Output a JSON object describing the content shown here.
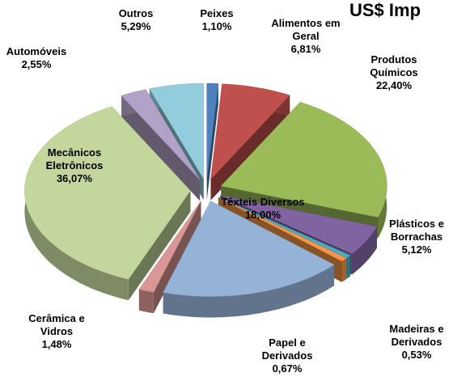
{
  "chart_data": {
    "type": "pie3d",
    "title": "US$ Imp",
    "categories": [
      "Peixes",
      "Alimentos em Geral",
      "Produtos Químicos",
      "Plásticos e Borrachas",
      "Madeiras e Derivados",
      "Papel e Derivados",
      "Têxteis Diversos",
      "Cerâmica e Vidros",
      "Mecânicos Eletrônicos",
      "Automóveis",
      "Outros"
    ],
    "values": [
      1.1,
      6.81,
      22.4,
      5.12,
      0.53,
      0.67,
      18.0,
      1.48,
      36.07,
      2.55,
      5.29
    ],
    "value_labels": [
      "1,10%",
      "6,81%",
      "22,40%",
      "5,12%",
      "0,53%",
      "0,67%",
      "18,00%",
      "1,48%",
      "36,07%",
      "2,55%",
      "5,29%"
    ],
    "colors": [
      "#4f81bd",
      "#c0504d",
      "#9bbb59",
      "#8064a2",
      "#4bacc6",
      "#f79646",
      "#95b3d7",
      "#d99694",
      "#c3d69b",
      "#b3a2c7",
      "#93cddd"
    ]
  }
}
